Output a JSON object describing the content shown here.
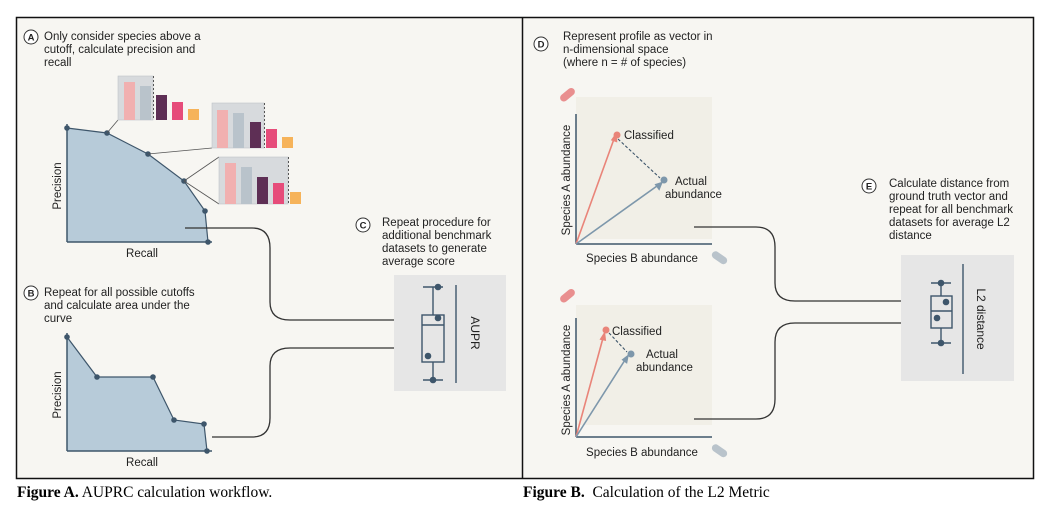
{
  "panel_a": {
    "step_a": {
      "letter": "A",
      "lines": [
        "Only consider species above a",
        "cutoff, calculate precision and",
        "recall"
      ]
    },
    "step_b": {
      "letter": "B",
      "lines": [
        "Repeat for all possible cutoffs",
        "and calculate area under the",
        "curve"
      ]
    },
    "step_c": {
      "letter": "C",
      "lines": [
        "Repeat procedure for",
        "additional benchmark",
        "datasets to generate",
        "average score"
      ]
    },
    "plot_top": {
      "ylabel": "Precision",
      "xlabel": "Recall"
    },
    "plot_bottom": {
      "ylabel": "Precision",
      "xlabel": "Recall"
    },
    "boxplot_label": "AUPR"
  },
  "panel_b": {
    "step_d": {
      "letter": "D",
      "lines": [
        "Represent profile as vector in",
        "n-dimensional space",
        "(where n = # of species)"
      ]
    },
    "step_e": {
      "letter": "E",
      "lines": [
        "Calculate distance from",
        "ground truth vector and",
        "repeat for all benchmark",
        "datasets for average L2",
        "distance"
      ]
    },
    "plot_top": {
      "ylabel": "Species A abundance",
      "xlabel": "Species B abundance",
      "classified_label": "Classified",
      "actual_label": [
        "Actual",
        "abundance"
      ]
    },
    "plot_bottom": {
      "ylabel": "Species A abundance",
      "xlabel": "Species B abundance",
      "classified_label": "Classified",
      "actual_label": [
        "Actual",
        "abundance"
      ]
    },
    "boxplot_label": "L2 distance"
  },
  "captions": {
    "a_bold": "Figure A.",
    "a_text": " AUPRC calculation workflow.",
    "b_bold": "Figure B.",
    "b_text": "  Calculation of the L2 Metric"
  },
  "colors": {
    "panel_bg": "#f7f6f2",
    "curve_fill": "#b7cbd9",
    "curve_stroke": "#3e566b",
    "classified_vector": "#e98479",
    "actual_vector": "#7d97ab",
    "bar_colors": [
      "#f1b0b0",
      "#b9c3cb",
      "#5e2f55",
      "#e64c7a",
      "#f6b35a"
    ],
    "box_bg": "#e6e6e6"
  }
}
